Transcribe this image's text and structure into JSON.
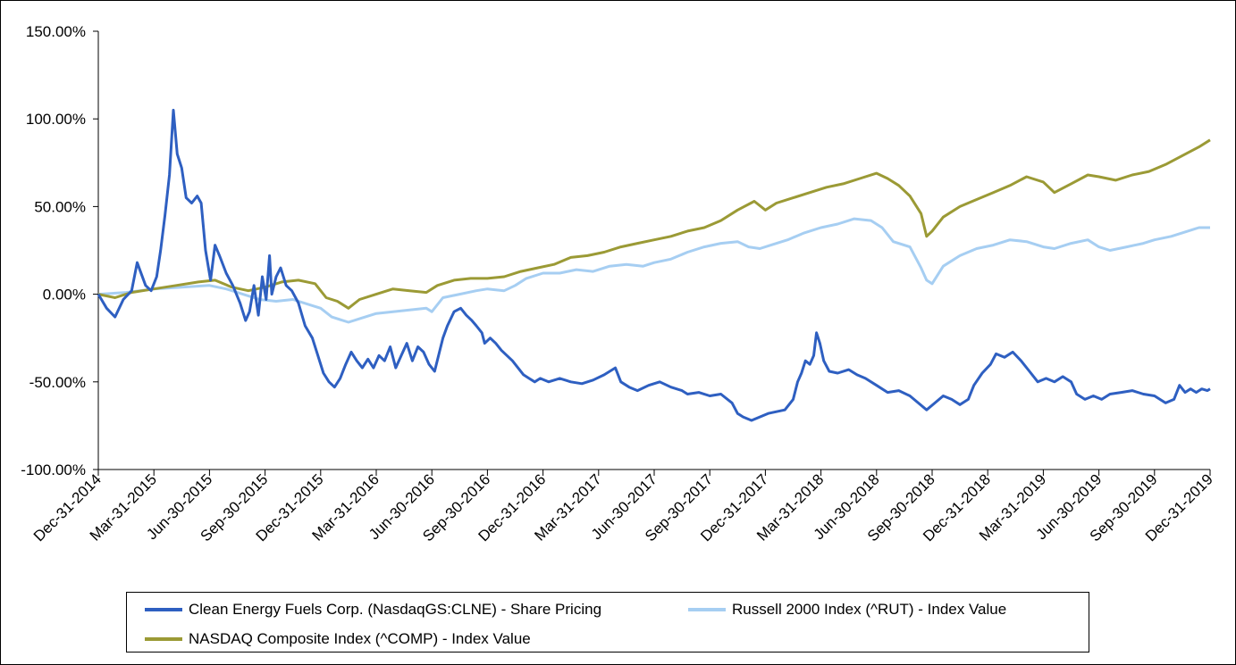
{
  "chart_data": {
    "type": "line",
    "title": "",
    "xlabel": "",
    "ylabel": "",
    "ylim": [
      -100,
      150
    ],
    "y_ticks": [
      -100,
      -50,
      0,
      50,
      100,
      150
    ],
    "y_tick_labels": [
      "-100.00%",
      "-50.00%",
      "0.00%",
      "50.00%",
      "100.00%",
      "150.00%"
    ],
    "x_ticks": [
      "Dec-31-2014",
      "Mar-31-2015",
      "Jun-30-2015",
      "Sep-30-2015",
      "Dec-31-2015",
      "Mar-31-2016",
      "Jun-30-2016",
      "Sep-30-2016",
      "Dec-31-2016",
      "Mar-31-2017",
      "Jun-30-2017",
      "Sep-30-2017",
      "Dec-31-2017",
      "Mar-31-2018",
      "Jun-30-2018",
      "Sep-30-2018",
      "Dec-31-2018",
      "Mar-31-2019",
      "Jun-30-2019",
      "Sep-30-2019",
      "Dec-31-2019"
    ],
    "x_unit": "quarters since Dec-31-2014",
    "xlim": [
      0,
      20
    ],
    "grid": false,
    "legend_position": "bottom",
    "series": [
      {
        "name": "Clean Energy Fuels Corp. (NasdaqGS:CLNE) - Share Pricing",
        "color": "#2E5FC1",
        "points": [
          [
            0,
            0
          ],
          [
            0.15,
            -8
          ],
          [
            0.3,
            -13
          ],
          [
            0.45,
            -3
          ],
          [
            0.6,
            2
          ],
          [
            0.7,
            18
          ],
          [
            0.85,
            5
          ],
          [
            0.95,
            2
          ],
          [
            1.05,
            10
          ],
          [
            1.12,
            25
          ],
          [
            1.2,
            45
          ],
          [
            1.28,
            68
          ],
          [
            1.35,
            105
          ],
          [
            1.42,
            80
          ],
          [
            1.5,
            72
          ],
          [
            1.58,
            55
          ],
          [
            1.68,
            52
          ],
          [
            1.78,
            56
          ],
          [
            1.85,
            52
          ],
          [
            1.93,
            25
          ],
          [
            2.02,
            8
          ],
          [
            2.1,
            28
          ],
          [
            2.18,
            22
          ],
          [
            2.3,
            12
          ],
          [
            2.42,
            5
          ],
          [
            2.55,
            -5
          ],
          [
            2.65,
            -15
          ],
          [
            2.72,
            -10
          ],
          [
            2.8,
            5
          ],
          [
            2.88,
            -12
          ],
          [
            2.95,
            10
          ],
          [
            3.02,
            -3
          ],
          [
            3.08,
            22
          ],
          [
            3.12,
            0
          ],
          [
            3.2,
            10
          ],
          [
            3.28,
            15
          ],
          [
            3.38,
            5
          ],
          [
            3.48,
            2
          ],
          [
            3.6,
            -5
          ],
          [
            3.72,
            -18
          ],
          [
            3.85,
            -25
          ],
          [
            3.95,
            -35
          ],
          [
            4.05,
            -45
          ],
          [
            4.15,
            -50
          ],
          [
            4.25,
            -53
          ],
          [
            4.35,
            -48
          ],
          [
            4.45,
            -40
          ],
          [
            4.55,
            -33
          ],
          [
            4.65,
            -38
          ],
          [
            4.75,
            -42
          ],
          [
            4.85,
            -37
          ],
          [
            4.95,
            -42
          ],
          [
            5.05,
            -35
          ],
          [
            5.15,
            -38
          ],
          [
            5.25,
            -30
          ],
          [
            5.35,
            -42
          ],
          [
            5.45,
            -35
          ],
          [
            5.55,
            -28
          ],
          [
            5.65,
            -38
          ],
          [
            5.75,
            -30
          ],
          [
            5.85,
            -33
          ],
          [
            5.95,
            -40
          ],
          [
            6.05,
            -44
          ],
          [
            6.12,
            -35
          ],
          [
            6.2,
            -25
          ],
          [
            6.28,
            -18
          ],
          [
            6.4,
            -10
          ],
          [
            6.52,
            -8
          ],
          [
            6.62,
            -12
          ],
          [
            6.72,
            -15
          ],
          [
            6.8,
            -18
          ],
          [
            6.9,
            -22
          ],
          [
            6.95,
            -28
          ],
          [
            7.05,
            -25
          ],
          [
            7.15,
            -28
          ],
          [
            7.25,
            -32
          ],
          [
            7.35,
            -35
          ],
          [
            7.45,
            -38
          ],
          [
            7.55,
            -42
          ],
          [
            7.65,
            -46
          ],
          [
            7.75,
            -48
          ],
          [
            7.85,
            -50
          ],
          [
            7.95,
            -48
          ],
          [
            8.1,
            -50
          ],
          [
            8.3,
            -48
          ],
          [
            8.5,
            -50
          ],
          [
            8.7,
            -51
          ],
          [
            8.9,
            -49
          ],
          [
            9.1,
            -46
          ],
          [
            9.3,
            -42
          ],
          [
            9.4,
            -50
          ],
          [
            9.55,
            -53
          ],
          [
            9.7,
            -55
          ],
          [
            9.9,
            -52
          ],
          [
            10.1,
            -50
          ],
          [
            10.3,
            -53
          ],
          [
            10.5,
            -55
          ],
          [
            10.6,
            -57
          ],
          [
            10.8,
            -56
          ],
          [
            11,
            -58
          ],
          [
            11.2,
            -57
          ],
          [
            11.4,
            -62
          ],
          [
            11.5,
            -68
          ],
          [
            11.6,
            -70
          ],
          [
            11.75,
            -72
          ],
          [
            11.9,
            -70
          ],
          [
            12.05,
            -68
          ],
          [
            12.2,
            -67
          ],
          [
            12.35,
            -66
          ],
          [
            12.5,
            -60
          ],
          [
            12.58,
            -50
          ],
          [
            12.65,
            -45
          ],
          [
            12.72,
            -38
          ],
          [
            12.8,
            -40
          ],
          [
            12.87,
            -35
          ],
          [
            12.92,
            -22
          ],
          [
            12.98,
            -28
          ],
          [
            13.05,
            -38
          ],
          [
            13.15,
            -44
          ],
          [
            13.3,
            -45
          ],
          [
            13.5,
            -43
          ],
          [
            13.65,
            -46
          ],
          [
            13.8,
            -48
          ],
          [
            14,
            -52
          ],
          [
            14.2,
            -56
          ],
          [
            14.4,
            -55
          ],
          [
            14.6,
            -58
          ],
          [
            14.75,
            -62
          ],
          [
            14.9,
            -66
          ],
          [
            15.05,
            -62
          ],
          [
            15.2,
            -58
          ],
          [
            15.35,
            -60
          ],
          [
            15.5,
            -63
          ],
          [
            15.65,
            -60
          ],
          [
            15.75,
            -52
          ],
          [
            15.9,
            -45
          ],
          [
            16.05,
            -40
          ],
          [
            16.15,
            -34
          ],
          [
            16.3,
            -36
          ],
          [
            16.45,
            -33
          ],
          [
            16.6,
            -38
          ],
          [
            16.75,
            -44
          ],
          [
            16.9,
            -50
          ],
          [
            17.05,
            -48
          ],
          [
            17.2,
            -50
          ],
          [
            17.35,
            -47
          ],
          [
            17.5,
            -50
          ],
          [
            17.6,
            -57
          ],
          [
            17.75,
            -60
          ],
          [
            17.9,
            -58
          ],
          [
            18.05,
            -60
          ],
          [
            18.2,
            -57
          ],
          [
            18.4,
            -56
          ],
          [
            18.6,
            -55
          ],
          [
            18.8,
            -57
          ],
          [
            19,
            -58
          ],
          [
            19.2,
            -62
          ],
          [
            19.35,
            -60
          ],
          [
            19.45,
            -52
          ],
          [
            19.55,
            -56
          ],
          [
            19.65,
            -54
          ],
          [
            19.75,
            -56
          ],
          [
            19.85,
            -54
          ],
          [
            19.95,
            -55
          ],
          [
            20,
            -54
          ]
        ]
      },
      {
        "name": "Russell 2000 Index (^RUT) - Index Value",
        "color": "#A6CEF2",
        "points": [
          [
            0,
            0
          ],
          [
            0.5,
            1
          ],
          [
            1,
            3
          ],
          [
            1.5,
            4
          ],
          [
            2,
            5
          ],
          [
            2.3,
            3
          ],
          [
            2.6,
            0
          ],
          [
            2.9,
            -3
          ],
          [
            3.2,
            -4
          ],
          [
            3.5,
            -3
          ],
          [
            3.8,
            -6
          ],
          [
            4,
            -8
          ],
          [
            4.2,
            -13
          ],
          [
            4.5,
            -16
          ],
          [
            4.7,
            -14
          ],
          [
            5,
            -11
          ],
          [
            5.3,
            -10
          ],
          [
            5.6,
            -9
          ],
          [
            5.9,
            -8
          ],
          [
            6,
            -10
          ],
          [
            6.2,
            -2
          ],
          [
            6.5,
            0
          ],
          [
            6.8,
            2
          ],
          [
            7,
            3
          ],
          [
            7.3,
            2
          ],
          [
            7.5,
            5
          ],
          [
            7.7,
            9
          ],
          [
            8,
            12
          ],
          [
            8.3,
            12
          ],
          [
            8.6,
            14
          ],
          [
            8.9,
            13
          ],
          [
            9.2,
            16
          ],
          [
            9.5,
            17
          ],
          [
            9.8,
            16
          ],
          [
            10,
            18
          ],
          [
            10.3,
            20
          ],
          [
            10.6,
            24
          ],
          [
            10.9,
            27
          ],
          [
            11.2,
            29
          ],
          [
            11.5,
            30
          ],
          [
            11.7,
            27
          ],
          [
            11.9,
            26
          ],
          [
            12.1,
            28
          ],
          [
            12.4,
            31
          ],
          [
            12.7,
            35
          ],
          [
            13,
            38
          ],
          [
            13.3,
            40
          ],
          [
            13.6,
            43
          ],
          [
            13.9,
            42
          ],
          [
            14.1,
            38
          ],
          [
            14.3,
            30
          ],
          [
            14.6,
            27
          ],
          [
            14.8,
            15
          ],
          [
            14.9,
            8
          ],
          [
            15,
            6
          ],
          [
            15.2,
            16
          ],
          [
            15.5,
            22
          ],
          [
            15.8,
            26
          ],
          [
            16.1,
            28
          ],
          [
            16.4,
            31
          ],
          [
            16.7,
            30
          ],
          [
            17,
            27
          ],
          [
            17.2,
            26
          ],
          [
            17.5,
            29
          ],
          [
            17.8,
            31
          ],
          [
            18,
            27
          ],
          [
            18.2,
            25
          ],
          [
            18.5,
            27
          ],
          [
            18.8,
            29
          ],
          [
            19,
            31
          ],
          [
            19.3,
            33
          ],
          [
            19.6,
            36
          ],
          [
            19.8,
            38
          ],
          [
            20,
            38
          ]
        ]
      },
      {
        "name": "NASDAQ Composite Index (^COMP) - Index Value",
        "color": "#9B9A35",
        "points": [
          [
            0,
            0
          ],
          [
            0.3,
            -2
          ],
          [
            0.6,
            1
          ],
          [
            1,
            3
          ],
          [
            1.4,
            5
          ],
          [
            1.8,
            7
          ],
          [
            2.1,
            8
          ],
          [
            2.4,
            4
          ],
          [
            2.7,
            2
          ],
          [
            3,
            4
          ],
          [
            3.3,
            7
          ],
          [
            3.6,
            8
          ],
          [
            3.9,
            6
          ],
          [
            4.1,
            -2
          ],
          [
            4.3,
            -4
          ],
          [
            4.5,
            -8
          ],
          [
            4.7,
            -3
          ],
          [
            5,
            0
          ],
          [
            5.3,
            3
          ],
          [
            5.6,
            2
          ],
          [
            5.9,
            1
          ],
          [
            6.1,
            5
          ],
          [
            6.4,
            8
          ],
          [
            6.7,
            9
          ],
          [
            7,
            9
          ],
          [
            7.3,
            10
          ],
          [
            7.6,
            13
          ],
          [
            7.9,
            15
          ],
          [
            8.2,
            17
          ],
          [
            8.5,
            21
          ],
          [
            8.8,
            22
          ],
          [
            9.1,
            24
          ],
          [
            9.4,
            27
          ],
          [
            9.7,
            29
          ],
          [
            10,
            31
          ],
          [
            10.3,
            33
          ],
          [
            10.6,
            36
          ],
          [
            10.9,
            38
          ],
          [
            11.2,
            42
          ],
          [
            11.5,
            48
          ],
          [
            11.8,
            53
          ],
          [
            12,
            48
          ],
          [
            12.2,
            52
          ],
          [
            12.5,
            55
          ],
          [
            12.8,
            58
          ],
          [
            13.1,
            61
          ],
          [
            13.4,
            63
          ],
          [
            13.7,
            66
          ],
          [
            14,
            69
          ],
          [
            14.2,
            66
          ],
          [
            14.4,
            62
          ],
          [
            14.6,
            56
          ],
          [
            14.8,
            46
          ],
          [
            14.9,
            33
          ],
          [
            15,
            36
          ],
          [
            15.2,
            44
          ],
          [
            15.5,
            50
          ],
          [
            15.8,
            54
          ],
          [
            16.1,
            58
          ],
          [
            16.4,
            62
          ],
          [
            16.7,
            67
          ],
          [
            17,
            64
          ],
          [
            17.2,
            58
          ],
          [
            17.5,
            63
          ],
          [
            17.8,
            68
          ],
          [
            18,
            67
          ],
          [
            18.3,
            65
          ],
          [
            18.6,
            68
          ],
          [
            18.9,
            70
          ],
          [
            19.2,
            74
          ],
          [
            19.5,
            79
          ],
          [
            19.8,
            84
          ],
          [
            20,
            88
          ]
        ]
      }
    ]
  }
}
